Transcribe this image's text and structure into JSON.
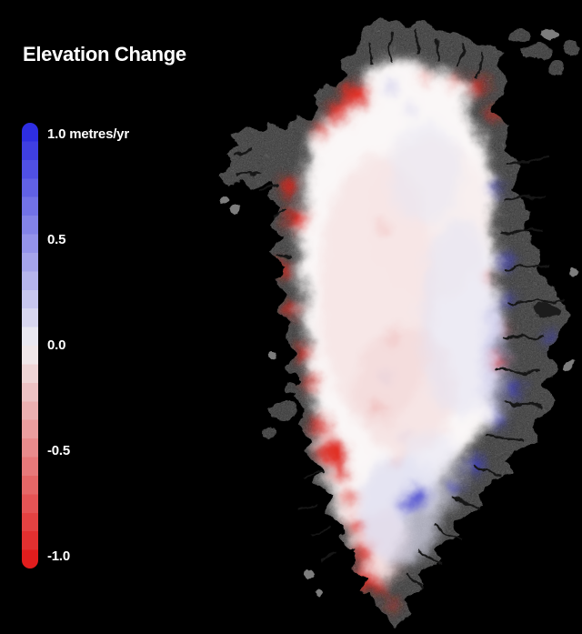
{
  "title": "Elevation Change",
  "background_color": "#000000",
  "legend": {
    "unit": "metres/yr",
    "steps": 24,
    "colors": {
      "positive_max": "#2626e0",
      "zero": "#f1f0f2",
      "negative_max": "#e01414"
    },
    "ticks": [
      {
        "value": 1.0,
        "label": "1.0 metres/yr"
      },
      {
        "value": 0.5,
        "label": "0.5"
      },
      {
        "value": 0.0,
        "label": "0.0"
      },
      {
        "value": -0.5,
        "label": "-0.5"
      },
      {
        "value": -1.0,
        "label": "-1.0"
      }
    ]
  },
  "map": {
    "region": "Greenland",
    "land_color": "#828282",
    "ice_color": "#faf7f7",
    "thinning_color": "#df2418",
    "thickening_color": "#4040d0",
    "fjord_color": "#141414",
    "ocean_color": "#000000"
  },
  "chart_data": {
    "type": "heatmap",
    "title": "Elevation Change",
    "unit": "metres/yr",
    "colorbar": {
      "min": -1.0,
      "max": 1.0,
      "ticks": [
        1.0,
        0.5,
        0.0,
        -0.5,
        -1.0
      ],
      "positive_color": "blue",
      "zero_color": "white",
      "negative_color": "red",
      "stepped": true,
      "orientation": "vertical",
      "position": "left"
    },
    "observations": [
      "Strong negative elevation change (red, up to -1.0 m/yr) along the western ice-sheet margin and southern tip",
      "Positive elevation change (blue) in patches along the eastern and southeastern ice margins",
      "Near-zero change (white / very light pink) across the high interior of the ice sheet",
      "Ice-free bedrock and fjord coastline shown in gray with dark fjord channels, ocean in black"
    ]
  }
}
